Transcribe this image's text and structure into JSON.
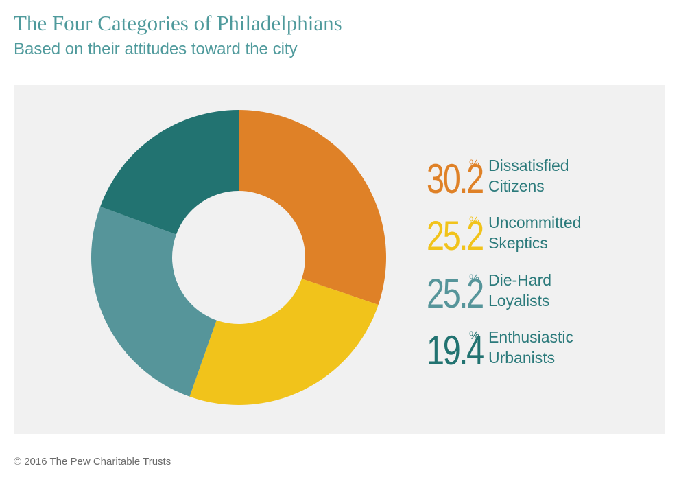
{
  "header": {
    "title": "The Four Categories of Philadelphians",
    "subtitle": "Based on their attitudes toward the city"
  },
  "chart_data": {
    "type": "pie",
    "variant": "donut",
    "unit": "%",
    "slices": [
      {
        "label_line1": "Dissatisfied",
        "label_line2": "Citizens",
        "value": 30.2,
        "value_text": "30.2",
        "color": "#df8127"
      },
      {
        "label_line1": "Uncommitted",
        "label_line2": "Skeptics",
        "value": 25.2,
        "value_text": "25.2",
        "color": "#f1c31b"
      },
      {
        "label_line1": "Die-Hard",
        "label_line2": "Loyalists",
        "value": 25.2,
        "value_text": "25.2",
        "color": "#56959a"
      },
      {
        "label_line1": "Enthusiastic",
        "label_line2": "Urbanists",
        "value": 19.4,
        "value_text": "19.4",
        "color": "#227371"
      }
    ],
    "legend_placement": "right"
  },
  "footer": {
    "credit": "© 2016 The Pew Charitable Trusts"
  }
}
